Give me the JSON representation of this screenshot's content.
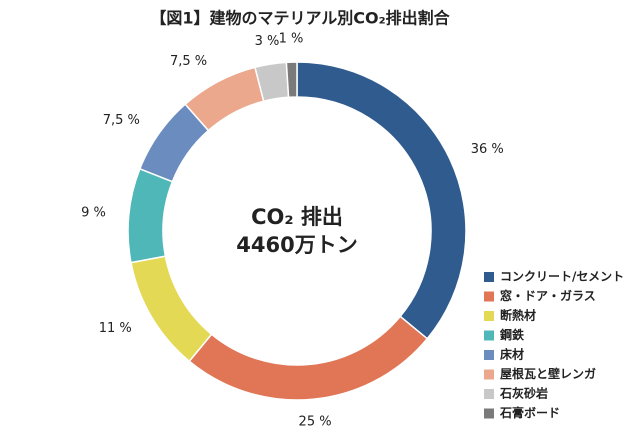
{
  "chart_data": {
    "type": "donut",
    "title": "【図1】建物のマテリアル別CO₂排出割合",
    "center_text": [
      "CO₂ 排出",
      "4460万トン"
    ],
    "series": [
      {
        "name": "コンクリート/セメント",
        "color": "#2f5b8e",
        "values": [
          36
        ],
        "value_labels": [
          "36 %"
        ]
      },
      {
        "name": "窓・ドア・ガラス",
        "color": "#e07656",
        "values": [
          25
        ],
        "value_labels": [
          "25 %"
        ]
      },
      {
        "name": "断熱材",
        "color": "#e3d955",
        "values": [
          11
        ],
        "value_labels": [
          "11 %"
        ]
      },
      {
        "name": "鋼鉄",
        "color": "#4fb7b8",
        "values": [
          9
        ],
        "value_labels": [
          "9 %"
        ]
      },
      {
        "name": "床材",
        "color": "#6b8cbf",
        "values": [
          7.5
        ],
        "value_labels": [
          "7,5 %"
        ]
      },
      {
        "name": "屋根瓦と壁レンガ",
        "color": "#eca88c",
        "values": [
          7.5
        ],
        "value_labels": [
          "7,5 %"
        ]
      },
      {
        "name": "石灰砂岩",
        "color": "#c8c8c8",
        "values": [
          3
        ],
        "value_labels": [
          "3 %"
        ]
      },
      {
        "name": "石膏ボード",
        "color": "#7a7a7a",
        "values": [
          1
        ],
        "value_labels": [
          "1 %"
        ]
      }
    ],
    "legend": "lower-right"
  }
}
